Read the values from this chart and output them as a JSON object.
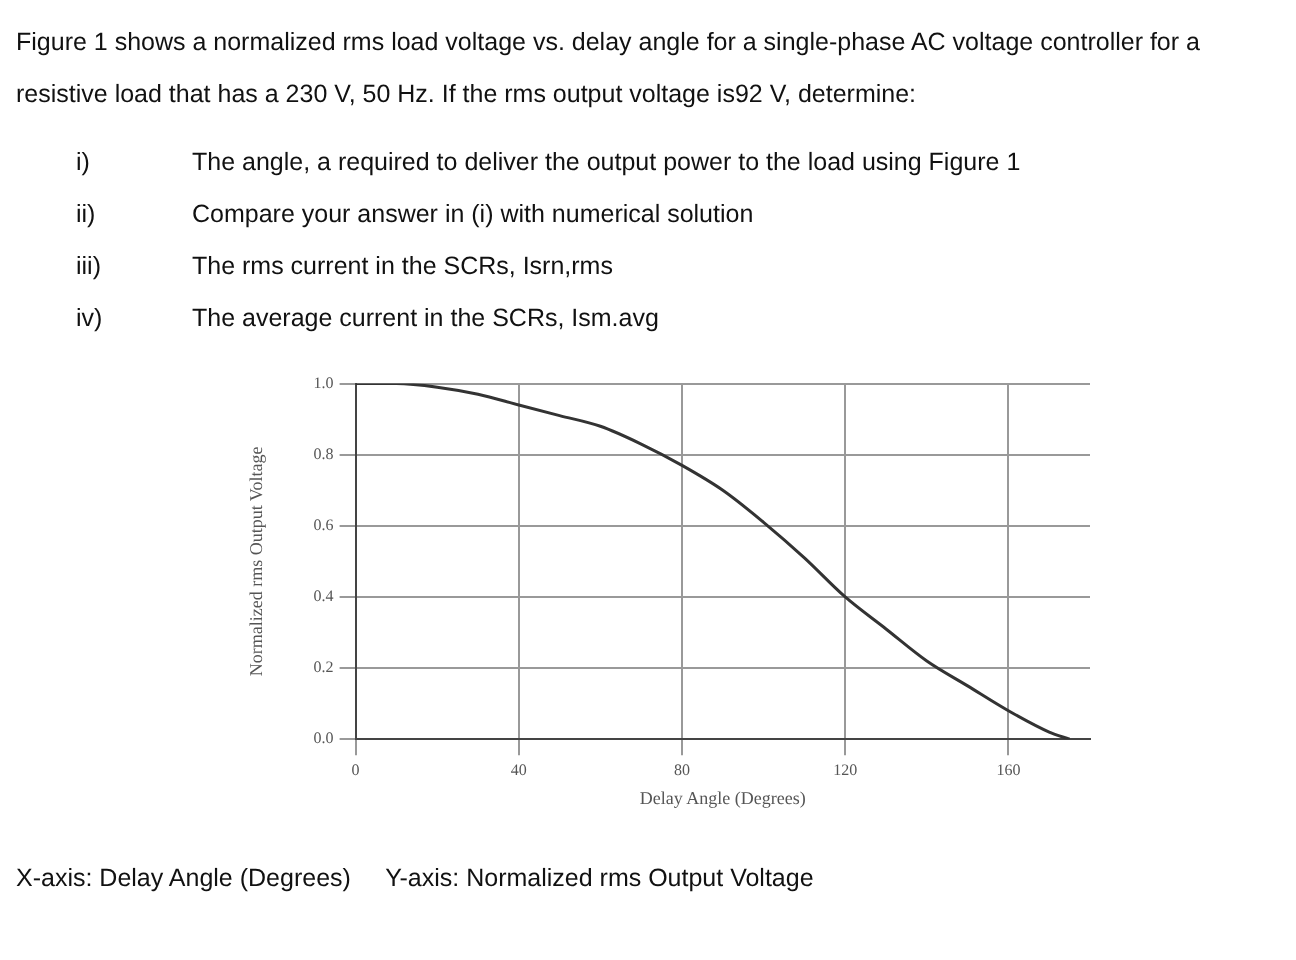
{
  "chart_data": {
    "type": "line",
    "title": "Figure 1 shows a normalized rms load voltage vs. delay angle for a single-phase AC voltage controller for a resistive load that has a 230 V, 50 Hz. If the rms output voltage is92 V, determine:",
    "annotations": [
      "i) The angle, a required to deliver the output power to the load using Figure 1",
      "ii) Compare your answer in (i) with numerical solution",
      "iii) The rms current in the SCRs, Isrn,rms",
      "iv) The average current in the SCRs, Ism.avg",
      "X-axis: Delay Angle (Degrees)     Y-axis: Normalized rms Output Voltage"
    ],
    "xlabel": "Delay Angle (Degrees)",
    "ylabel": "Normalized rms Output Voltage",
    "x": [
      0,
      10,
      20,
      30,
      40,
      50,
      60,
      70,
      80,
      90,
      100,
      110,
      120,
      130,
      140,
      150,
      160,
      170,
      175
    ],
    "series": [
      {
        "color": "#333333",
        "values": [
          1.0,
          1.0,
          0.99,
          0.97,
          0.94,
          0.91,
          0.88,
          0.83,
          0.77,
          0.7,
          0.61,
          0.51,
          0.4,
          0.31,
          0.22,
          0.15,
          0.08,
          0.02,
          0.0
        ]
      }
    ],
    "xlim": [
      0,
      180
    ],
    "xticks": [
      0,
      40,
      80,
      120,
      160
    ],
    "ylim": [
      0,
      1
    ],
    "yticks": [
      {
        "value": 0,
        "label": "0.0"
      },
      0.2,
      0.4,
      0.6,
      0.8,
      {
        "value": 1,
        "label": "1.0"
      }
    ],
    "grid": true,
    "legend": false,
    "marker": "none",
    "line_style": "solid"
  }
}
